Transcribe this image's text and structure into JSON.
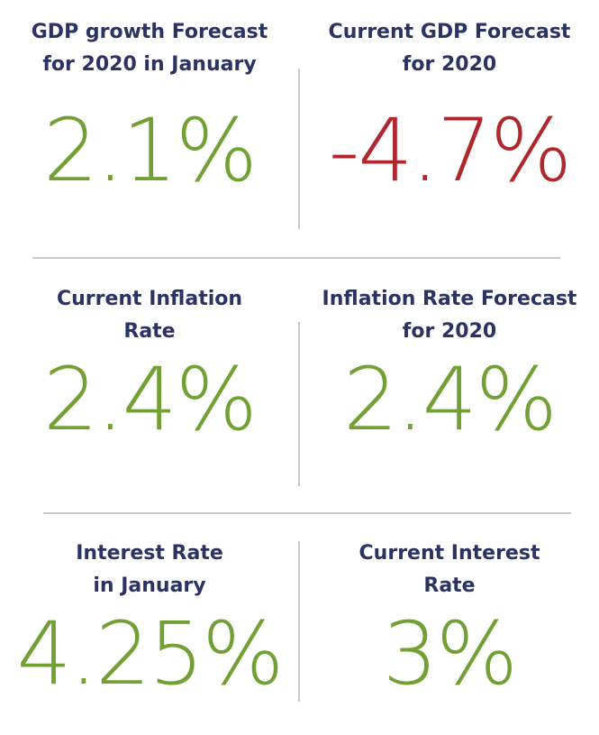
{
  "colors": {
    "label": "#2b3363",
    "positive": "#72a034",
    "negative": "#b0272e",
    "divider": "#c9c9c9"
  },
  "cells": [
    {
      "label_line1": "GDP growth Forecast",
      "label_line2": "for 2020 in January",
      "value": "2.1%",
      "tone": "positive"
    },
    {
      "label_line1": "Current GDP Forecast",
      "label_line2": "for 2020",
      "value": "-4.7%",
      "tone": "negative"
    },
    {
      "label_line1": "Current Inflation",
      "label_line2": "Rate",
      "value": "2.4%",
      "tone": "positive"
    },
    {
      "label_line1": "Inflation Rate Forecast",
      "label_line2": "for 2020",
      "value": "2.4%",
      "tone": "positive"
    },
    {
      "label_line1": "Interest Rate",
      "label_line2": "in January",
      "value": "4.25%",
      "tone": "positive"
    },
    {
      "label_line1": "Current Interest",
      "label_line2": "Rate",
      "value": "3%",
      "tone": "positive"
    }
  ]
}
